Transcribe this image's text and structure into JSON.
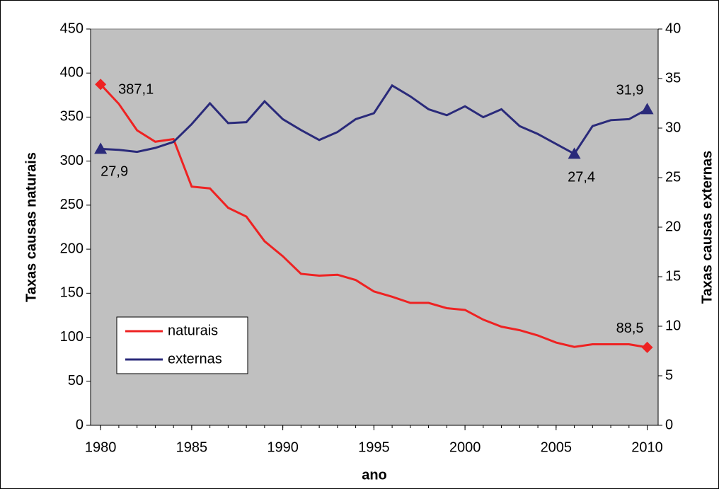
{
  "chart_data": {
    "type": "line",
    "x": [
      1980,
      1981,
      1982,
      1983,
      1984,
      1985,
      1986,
      1987,
      1988,
      1989,
      1990,
      1991,
      1992,
      1993,
      1994,
      1995,
      1996,
      1997,
      1998,
      1999,
      2000,
      2001,
      2002,
      2003,
      2004,
      2005,
      2006,
      2007,
      2008,
      2009,
      2010
    ],
    "xlabel": "ano",
    "ylabel": "Taxas  causas naturais",
    "y2label": "Taxas causas externas",
    "xlim": [
      1979.45,
      2010.6
    ],
    "xticks": [
      1980,
      1985,
      1990,
      1995,
      2000,
      2005,
      2010
    ],
    "ylim": [
      0,
      450
    ],
    "yticks": [
      0,
      50,
      100,
      150,
      200,
      250,
      300,
      350,
      400,
      450
    ],
    "y2lim": [
      0,
      40
    ],
    "y2ticks": [
      0,
      5,
      10,
      15,
      20,
      25,
      30,
      35,
      40
    ],
    "legend": "lower left",
    "series": [
      {
        "name": "naturais",
        "color": "#ee2222",
        "marker": "diamond",
        "values": [
          387.1,
          365,
          335,
          322,
          325,
          271,
          269,
          247,
          237,
          209,
          192,
          172,
          170,
          171,
          165,
          152,
          146,
          139,
          139,
          133,
          131,
          120,
          112,
          108,
          102,
          94,
          89,
          92,
          92,
          92,
          88.5
        ],
        "value_labels": [
          "387,1",
          null,
          null,
          null,
          null,
          null,
          null,
          null,
          null,
          null,
          null,
          null,
          null,
          null,
          null,
          null,
          null,
          null,
          null,
          null,
          null,
          null,
          null,
          null,
          null,
          null,
          null,
          null,
          null,
          null,
          "88,5"
        ]
      },
      {
        "name": "externas",
        "color": "#2a2a7a",
        "marker": "triangle",
        "axis": "y2",
        "values": [
          27.9,
          27.8,
          27.6,
          28,
          28.6,
          30.4,
          32.5,
          30.5,
          30.6,
          32.7,
          30.9,
          29.8,
          28.8,
          29.6,
          30.9,
          31.5,
          34.3,
          33.2,
          31.9,
          31.3,
          32.2,
          31.1,
          31.9,
          30.2,
          29.4,
          28.4,
          27.4,
          30.2,
          30.8,
          30.9,
          31.9
        ],
        "value_labels": [
          "27,9",
          null,
          null,
          null,
          null,
          null,
          null,
          null,
          null,
          null,
          null,
          null,
          null,
          null,
          null,
          null,
          null,
          null,
          null,
          null,
          null,
          null,
          null,
          null,
          null,
          null,
          "27,4",
          null,
          null,
          null,
          "31,9"
        ]
      }
    ]
  }
}
